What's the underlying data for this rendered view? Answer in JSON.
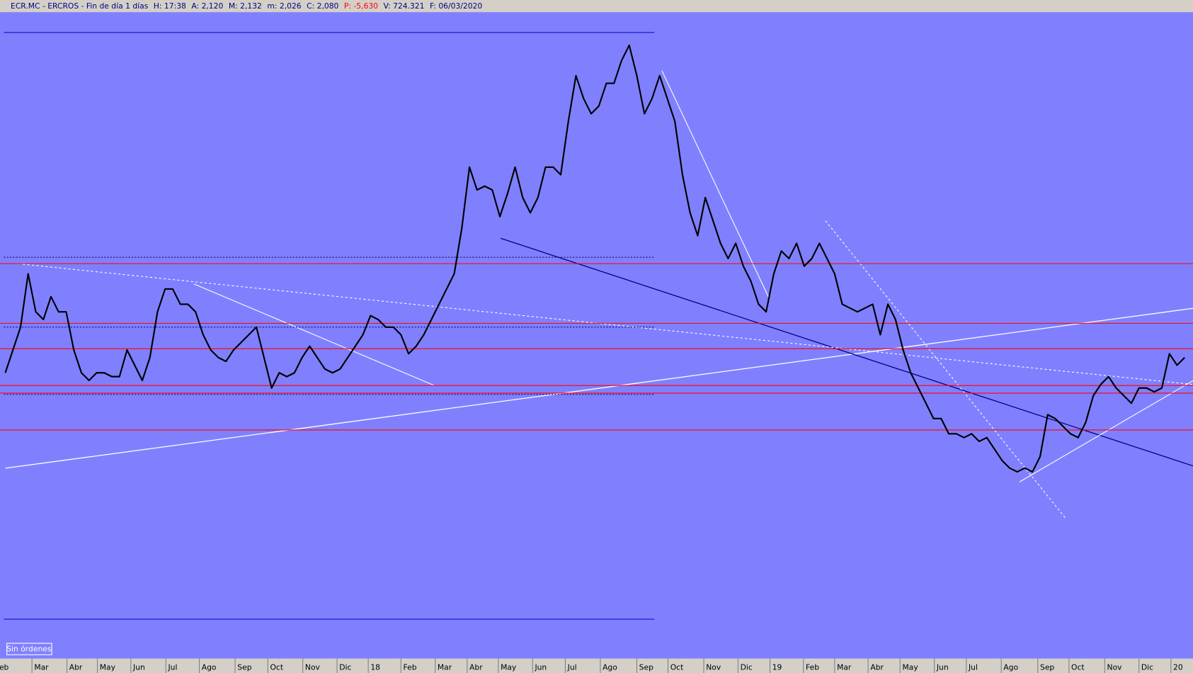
{
  "chart_data": {
    "type": "line",
    "header": [
      "ECR.MC - ERCROS - Fin de día 1 días",
      "H: 17:38",
      "A: 2,120",
      "M: 2,132",
      "m: 2,026",
      "C: 2,080",
      "P: -5,630",
      "V: 724.321",
      "F: 06/03/2020"
    ],
    "header_alert_color": "#ff0000",
    "button": "Sin órdenes",
    "color": "#000000",
    "values": [
      2.25,
      2.43,
      2.61,
      3.03,
      2.73,
      2.67,
      2.85,
      2.73,
      2.73,
      2.43,
      2.25,
      2.19,
      2.25,
      2.25,
      2.22,
      2.22,
      2.43,
      2.31,
      2.19,
      2.37,
      2.73,
      2.91,
      2.91,
      2.79,
      2.79,
      2.73,
      2.55,
      2.43,
      2.37,
      2.34,
      2.43,
      2.49,
      2.55,
      2.61,
      2.37,
      2.13,
      2.25,
      2.22,
      2.25,
      2.37,
      2.46,
      2.37,
      2.28,
      2.25,
      2.28,
      2.37,
      2.46,
      2.55,
      2.7,
      2.67,
      2.61,
      2.61,
      2.55,
      2.4,
      2.46,
      2.55,
      2.67,
      2.79,
      2.91,
      3.03,
      3.39,
      3.87,
      3.69,
      3.72,
      3.69,
      3.48,
      3.66,
      3.87,
      3.63,
      3.51,
      3.63,
      3.87,
      3.87,
      3.81,
      4.23,
      4.59,
      4.41,
      4.29,
      4.35,
      4.53,
      4.53,
      4.71,
      4.83,
      4.59,
      4.29,
      4.41,
      4.59,
      4.41,
      4.23,
      3.81,
      3.51,
      3.33,
      3.63,
      3.45,
      3.27,
      3.15,
      3.27,
      3.09,
      2.97,
      2.79,
      2.73,
      3.03,
      3.21,
      3.15,
      3.27,
      3.09,
      3.15,
      3.27,
      3.15,
      3.03,
      2.79,
      2.76,
      2.73,
      2.76,
      2.79,
      2.55,
      2.79,
      2.67,
      2.43,
      2.25,
      2.13,
      2.01,
      1.89,
      1.89,
      1.77,
      1.77,
      1.74,
      1.77,
      1.71,
      1.74,
      1.65,
      1.56,
      1.5,
      1.47,
      1.5,
      1.47,
      1.59,
      1.92,
      1.89,
      1.83,
      1.77,
      1.74,
      1.86,
      2.07,
      2.16,
      2.22,
      2.13,
      2.07,
      2.01,
      2.13,
      2.13,
      2.1,
      2.13,
      2.4,
      2.31,
      2.37
    ],
    "ylim": [
      0,
      5.09
    ],
    "xlim": [
      -0.7,
      156.1
    ],
    "xticks": [
      {
        "value": -1.1,
        "label": "eb"
      },
      {
        "value": 3.5,
        "label": "Mar"
      },
      {
        "value": 8.1,
        "label": "Abr"
      },
      {
        "value": 12.1,
        "label": "May"
      },
      {
        "value": 16.5,
        "label": "Jun"
      },
      {
        "value": 21.1,
        "label": "Jul"
      },
      {
        "value": 25.5,
        "label": "Ago"
      },
      {
        "value": 30.2,
        "label": "Sep"
      },
      {
        "value": 34.5,
        "label": "Oct"
      },
      {
        "value": 39.1,
        "label": "Nov"
      },
      {
        "value": 43.6,
        "label": "Dic"
      },
      {
        "value": 47.7,
        "label": "18"
      },
      {
        "value": 52,
        "label": "Feb"
      },
      {
        "value": 56.5,
        "label": "Mar"
      },
      {
        "value": 60.7,
        "label": "Abr"
      },
      {
        "value": 64.8,
        "label": "May"
      },
      {
        "value": 69.3,
        "label": "Jun"
      },
      {
        "value": 73.6,
        "label": "Jul"
      },
      {
        "value": 78.2,
        "label": "Ago"
      },
      {
        "value": 83,
        "label": "Sep"
      },
      {
        "value": 87.1,
        "label": "Oct"
      },
      {
        "value": 91.8,
        "label": "Nov"
      },
      {
        "value": 96.3,
        "label": "Dic"
      },
      {
        "value": 100.5,
        "label": "19"
      },
      {
        "value": 104.9,
        "label": "Feb"
      },
      {
        "value": 109,
        "label": "Mar"
      },
      {
        "value": 113.4,
        "label": "Abr"
      },
      {
        "value": 117.6,
        "label": "May"
      },
      {
        "value": 122.1,
        "label": "Jun"
      },
      {
        "value": 126.3,
        "label": "Jul"
      },
      {
        "value": 130.9,
        "label": "Ago"
      },
      {
        "value": 135.7,
        "label": "Sep"
      },
      {
        "value": 139.8,
        "label": "Oct"
      },
      {
        "value": 144.5,
        "label": "Nov"
      },
      {
        "value": 149,
        "label": "Dic"
      },
      {
        "value": 153.2,
        "label": "20"
      }
    ],
    "levels": [
      {
        "value": 3.11,
        "color": "#ff0000",
        "style": "solid"
      },
      {
        "value": 2.64,
        "color": "#ff0000",
        "style": "solid"
      },
      {
        "value": 2.44,
        "color": "#ff0000",
        "style": "solid"
      },
      {
        "value": 2.15,
        "color": "#ff0000",
        "style": "solid"
      },
      {
        "value": 2.09,
        "color": "#ff0000",
        "style": "solid"
      },
      {
        "value": 1.8,
        "color": "#ff0000",
        "style": "solid"
      },
      {
        "value": 4.93,
        "color": "#0000c0",
        "style": "half"
      },
      {
        "value": 0.31,
        "color": "#0000c0",
        "style": "half"
      },
      {
        "value": 3.16,
        "color": "#000060",
        "style": "dotted"
      },
      {
        "value": 2.61,
        "color": "#000060",
        "style": "dotted"
      },
      {
        "value": 2.08,
        "color": "#000060",
        "style": "dotted"
      }
    ]
  }
}
